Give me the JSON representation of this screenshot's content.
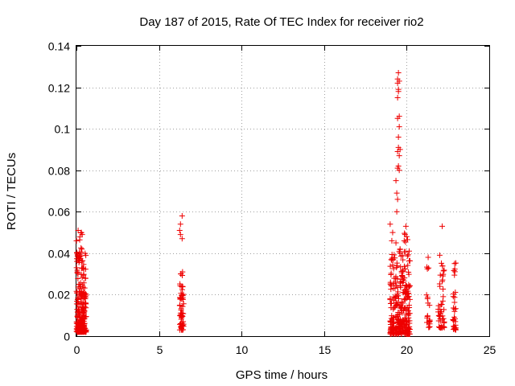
{
  "chart_data": {
    "type": "scatter",
    "title": "Day 187 of 2015, Rate Of TEC Index for receiver rio2",
    "xlabel": "GPS time / hours",
    "ylabel": "ROTI / TECUs",
    "xlim": [
      0,
      25
    ],
    "ylim": [
      0,
      0.14
    ],
    "xticks": [
      0,
      5,
      10,
      15,
      20,
      25
    ],
    "yticks": [
      0,
      0.02,
      0.04,
      0.06,
      0.08,
      0.1,
      0.12,
      0.14
    ],
    "xtick_labels": [
      "0",
      "5",
      "10",
      "15",
      "20",
      "25"
    ],
    "ytick_labels": [
      "0",
      "0.02",
      "0.04",
      "0.06",
      "0.08",
      "0.1",
      "0.12",
      "0.14"
    ],
    "grid": true,
    "marker": "+",
    "point_color": "#ee0000",
    "series": [
      {
        "name": "ROTI",
        "clusters": [
          {
            "x": [
              0.0,
              0.6
            ],
            "y": [
              0.002,
              0.04
            ],
            "count": 260
          },
          {
            "x": [
              0.0,
              0.4
            ],
            "y": [
              0.04,
              0.051
            ],
            "count": 10
          },
          {
            "x": [
              6.25,
              6.5
            ],
            "y": [
              0.003,
              0.031
            ],
            "count": 60
          },
          {
            "x": [
              19.0,
              20.2
            ],
            "y": [
              0.001,
              0.04
            ],
            "count": 300
          },
          {
            "x": [
              19.5,
              20.2
            ],
            "y": [
              0.04,
              0.05
            ],
            "count": 8
          },
          {
            "x": [
              21.2,
              21.4
            ],
            "y": [
              0.004,
              0.035
            ],
            "count": 22
          },
          {
            "x": [
              21.9,
              22.3
            ],
            "y": [
              0.004,
              0.038
            ],
            "count": 45
          },
          {
            "x": [
              22.8,
              23.0
            ],
            "y": [
              0.003,
              0.036
            ],
            "count": 30
          }
        ],
        "outliers": [
          {
            "x": 0.1,
            "y": 0.051
          },
          {
            "x": 0.35,
            "y": 0.049
          },
          {
            "x": 0.3,
            "y": 0.05
          },
          {
            "x": 6.25,
            "y": 0.051
          },
          {
            "x": 6.3,
            "y": 0.054
          },
          {
            "x": 6.4,
            "y": 0.058
          },
          {
            "x": 6.4,
            "y": 0.047
          },
          {
            "x": 6.3,
            "y": 0.049
          },
          {
            "x": 19.0,
            "y": 0.054
          },
          {
            "x": 19.1,
            "y": 0.046
          },
          {
            "x": 19.15,
            "y": 0.05
          },
          {
            "x": 19.4,
            "y": 0.06
          },
          {
            "x": 19.45,
            "y": 0.066
          },
          {
            "x": 19.35,
            "y": 0.075
          },
          {
            "x": 19.4,
            "y": 0.069
          },
          {
            "x": 19.45,
            "y": 0.081
          },
          {
            "x": 19.5,
            "y": 0.082
          },
          {
            "x": 19.55,
            "y": 0.08
          },
          {
            "x": 19.55,
            "y": 0.087
          },
          {
            "x": 19.45,
            "y": 0.089
          },
          {
            "x": 19.5,
            "y": 0.091
          },
          {
            "x": 19.6,
            "y": 0.09
          },
          {
            "x": 19.5,
            "y": 0.096
          },
          {
            "x": 19.55,
            "y": 0.101
          },
          {
            "x": 19.45,
            "y": 0.105
          },
          {
            "x": 19.55,
            "y": 0.106
          },
          {
            "x": 19.45,
            "y": 0.115
          },
          {
            "x": 19.5,
            "y": 0.118
          },
          {
            "x": 19.5,
            "y": 0.119
          },
          {
            "x": 19.45,
            "y": 0.122
          },
          {
            "x": 19.55,
            "y": 0.123
          },
          {
            "x": 19.45,
            "y": 0.124
          },
          {
            "x": 19.5,
            "y": 0.127
          },
          {
            "x": 19.35,
            "y": 0.045
          },
          {
            "x": 19.6,
            "y": 0.042
          },
          {
            "x": 19.95,
            "y": 0.053
          },
          {
            "x": 19.9,
            "y": 0.049
          },
          {
            "x": 20.0,
            "y": 0.048
          },
          {
            "x": 19.85,
            "y": 0.046
          },
          {
            "x": 20.15,
            "y": 0.041
          },
          {
            "x": 21.3,
            "y": 0.038
          },
          {
            "x": 22.0,
            "y": 0.039
          },
          {
            "x": 22.15,
            "y": 0.053
          },
          {
            "x": 22.9,
            "y": 0.035
          }
        ]
      }
    ]
  }
}
